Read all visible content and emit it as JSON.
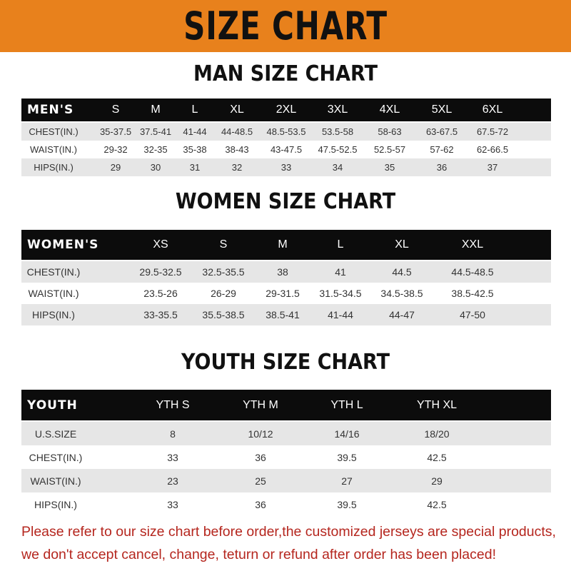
{
  "title": "SIZE CHART",
  "colors": {
    "banner": "#e8811c",
    "header_row": "#0c0c0c",
    "stripe": "#e6e6e6",
    "note": "#b5261e"
  },
  "men": {
    "title": "MAN SIZE CHART",
    "header": [
      "MEN'S",
      "S",
      "M",
      "L",
      "XL",
      "2XL",
      "3XL",
      "4XL",
      "5XL",
      "6XL"
    ],
    "rows": [
      [
        "CHEST(IN.)",
        "35-37.5",
        "37.5-41",
        "41-44",
        "44-48.5",
        "48.5-53.5",
        "53.5-58",
        "58-63",
        "63-67.5",
        "67.5-72"
      ],
      [
        "WAIST(IN.)",
        "29-32",
        "32-35",
        "35-38",
        "38-43",
        "43-47.5",
        "47.5-52.5",
        "52.5-57",
        "57-62",
        "62-66.5"
      ],
      [
        "HIPS(IN.)",
        "29",
        "30",
        "31",
        "32",
        "33",
        "34",
        "35",
        "36",
        "37"
      ]
    ]
  },
  "women": {
    "title": "WOMEN SIZE CHART",
    "header": [
      "WOMEN'S",
      "XS",
      "S",
      "M",
      "L",
      "XL",
      "XXL"
    ],
    "rows": [
      [
        "CHEST(IN.)",
        "29.5-32.5",
        "32.5-35.5",
        "38",
        "41",
        "44.5",
        "44.5-48.5"
      ],
      [
        "WAIST(IN.)",
        "23.5-26",
        "26-29",
        "29-31.5",
        "31.5-34.5",
        "34.5-38.5",
        "38.5-42.5"
      ],
      [
        "HIPS(IN.)",
        "33-35.5",
        "35.5-38.5",
        "38.5-41",
        "41-44",
        "44-47",
        "47-50"
      ]
    ]
  },
  "youth": {
    "title": "YOUTH SIZE CHART",
    "header": [
      "YOUTH",
      "YTH S",
      "YTH M",
      "YTH L",
      "YTH XL"
    ],
    "rows": [
      [
        "U.S.SIZE",
        "8",
        "10/12",
        "14/16",
        "18/20"
      ],
      [
        "CHEST(IN.)",
        "33",
        "36",
        "39.5",
        "42.5"
      ],
      [
        "WAIST(IN.)",
        "23",
        "25",
        "27",
        "29"
      ],
      [
        "HIPS(IN.)",
        "33",
        "36",
        "39.5",
        "42.5"
      ]
    ]
  },
  "note": {
    "line1": "Please refer to our size chart before order,the customized jerseys are special products,",
    "line2": "we don't accept cancel, change, teturn or refund after order has been placed!"
  }
}
